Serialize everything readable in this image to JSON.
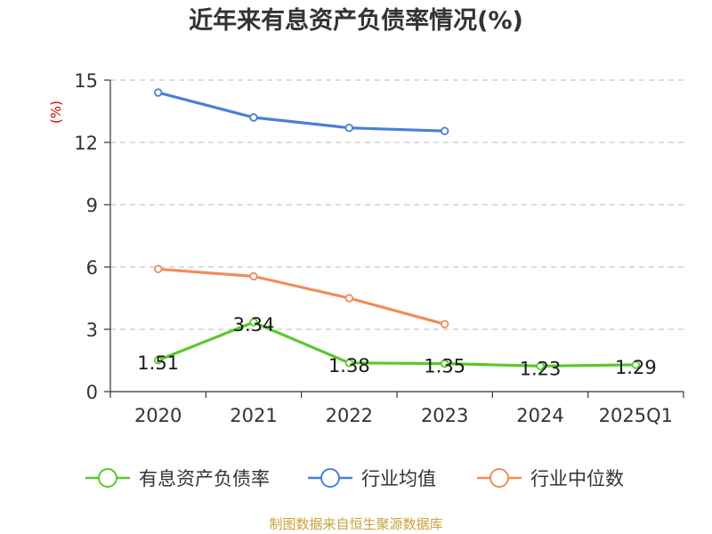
{
  "chart_data": {
    "type": "line",
    "title": "近年来有息资产负债率情况(%)",
    "ylabel": "(%)",
    "xlabel": "",
    "categories": [
      "2020",
      "2021",
      "2022",
      "2023",
      "2024",
      "2025Q1"
    ],
    "ylim": [
      0,
      15
    ],
    "yticks": [
      0,
      3,
      6,
      9,
      12,
      15
    ],
    "grid": true,
    "legend_position": "bottom",
    "series": [
      {
        "name": "有息资产负债率",
        "color": "#5cc72c",
        "values": [
          1.51,
          3.34,
          1.38,
          1.35,
          1.23,
          1.29
        ],
        "show_labels": true
      },
      {
        "name": "行业均值",
        "color": "#4a7fd8",
        "values": [
          14.4,
          13.2,
          12.7,
          12.55,
          null,
          null
        ],
        "show_labels": false
      },
      {
        "name": "行业中位数",
        "color": "#f08c5a",
        "values": [
          5.9,
          5.55,
          4.5,
          3.25,
          null,
          null
        ],
        "show_labels": false
      }
    ],
    "data_labels": [
      "1.51",
      "3.34",
      "1.38",
      "1.35",
      "1.23",
      "1.29"
    ],
    "source": "制图数据来自恒生聚源数据库"
  }
}
